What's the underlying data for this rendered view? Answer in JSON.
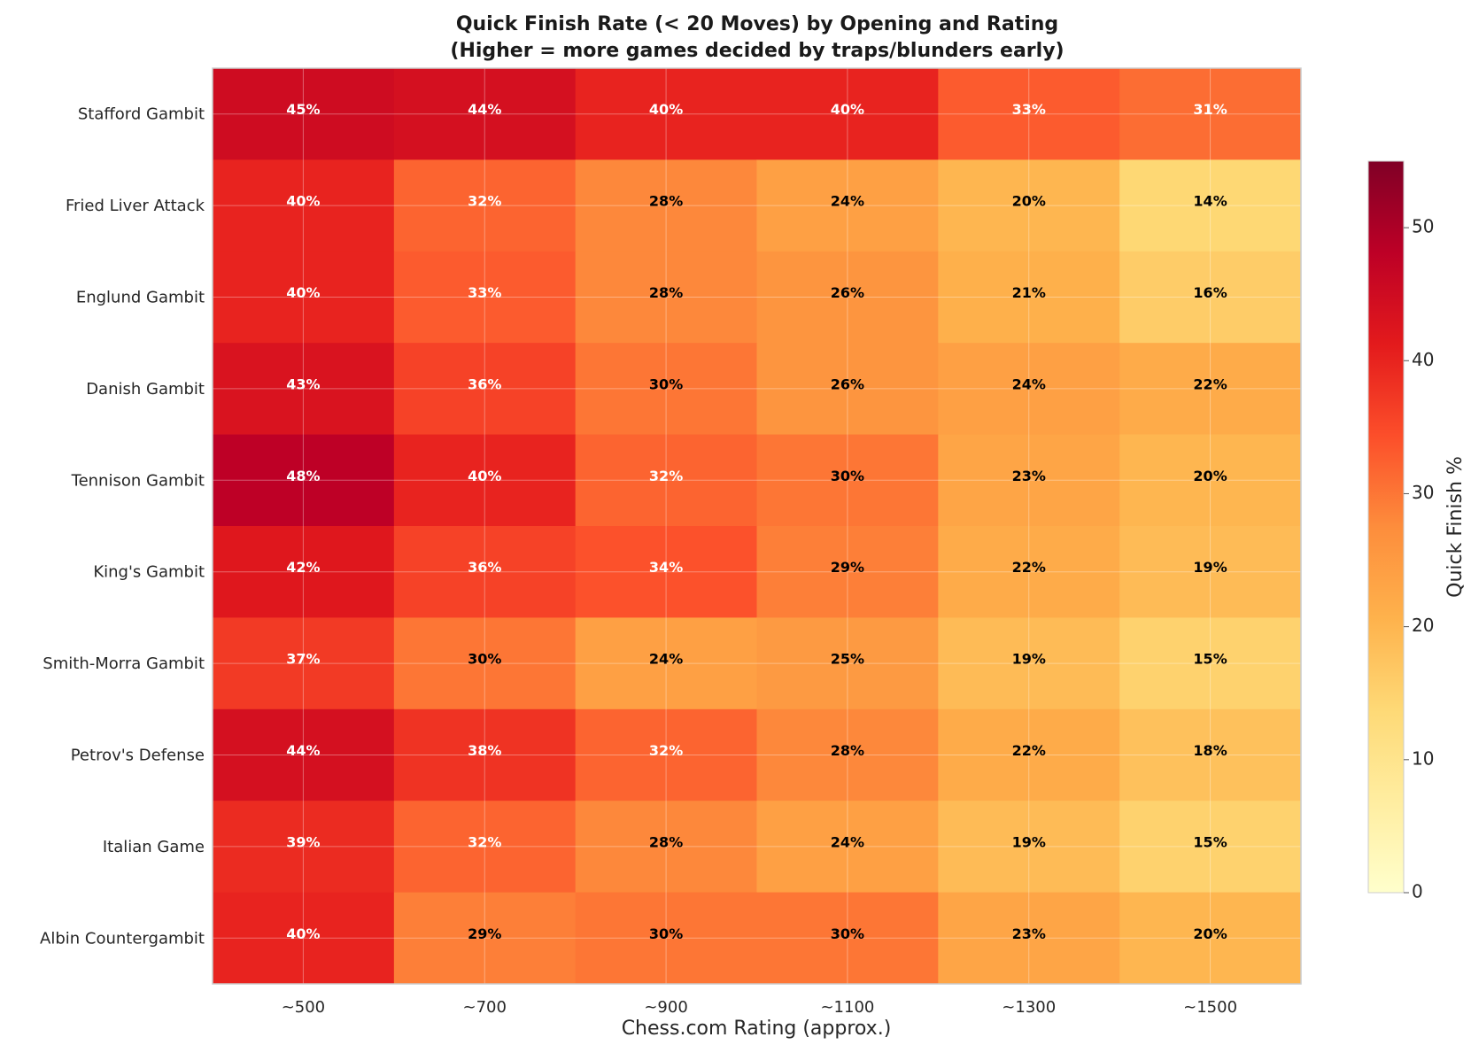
{
  "chart_data": {
    "type": "heatmap",
    "title": "Quick Finish Rate (< 20 Moves) by Opening and Rating",
    "subtitle": "(Higher = more games decided by traps/blunders early)",
    "xlabel": "Chess.com Rating (approx.)",
    "ylabel": "",
    "x_categories": [
      "~500",
      "~700",
      "~900",
      "~1100",
      "~1300",
      "~1500"
    ],
    "y_categories": [
      "Stafford Gambit",
      "Fried Liver Attack",
      "Englund Gambit",
      "Danish Gambit",
      "Tennison Gambit",
      "King's Gambit",
      "Smith-Morra Gambit",
      "Petrov's Defense",
      "Italian Game",
      "Albin Countergambit"
    ],
    "values": [
      [
        45,
        44,
        40,
        40,
        33,
        31
      ],
      [
        40,
        32,
        28,
        24,
        20,
        14
      ],
      [
        40,
        33,
        28,
        26,
        21,
        16
      ],
      [
        43,
        36,
        30,
        26,
        24,
        22
      ],
      [
        48,
        40,
        32,
        30,
        23,
        20
      ],
      [
        42,
        36,
        34,
        29,
        22,
        19
      ],
      [
        37,
        30,
        24,
        25,
        19,
        15
      ],
      [
        44,
        38,
        32,
        28,
        22,
        18
      ],
      [
        39,
        32,
        28,
        24,
        19,
        15
      ],
      [
        40,
        29,
        30,
        30,
        23,
        20
      ]
    ],
    "value_labels": [
      [
        "45%",
        "44%",
        "40%",
        "40%",
        "33%",
        "31%"
      ],
      [
        "40%",
        "32%",
        "28%",
        "24%",
        "20%",
        "14%"
      ],
      [
        "40%",
        "33%",
        "28%",
        "26%",
        "21%",
        "16%"
      ],
      [
        "43%",
        "36%",
        "30%",
        "26%",
        "24%",
        "22%"
      ],
      [
        "48%",
        "40%",
        "32%",
        "30%",
        "23%",
        "20%"
      ],
      [
        "42%",
        "36%",
        "34%",
        "29%",
        "22%",
        "19%"
      ],
      [
        "37%",
        "30%",
        "24%",
        "25%",
        "19%",
        "15%"
      ],
      [
        "44%",
        "38%",
        "32%",
        "28%",
        "22%",
        "18%"
      ],
      [
        "39%",
        "32%",
        "28%",
        "24%",
        "19%",
        "15%"
      ],
      [
        "40%",
        "29%",
        "30%",
        "30%",
        "23%",
        "20%"
      ]
    ],
    "colorbar": {
      "label": "Quick Finish %",
      "range": [
        0,
        55
      ],
      "ticks": [
        0,
        10,
        20,
        30,
        40,
        50
      ],
      "tick_labels": [
        "0",
        "10",
        "20",
        "30",
        "40",
        "50"
      ],
      "colormap": "YlOrRd"
    },
    "grid": true
  }
}
